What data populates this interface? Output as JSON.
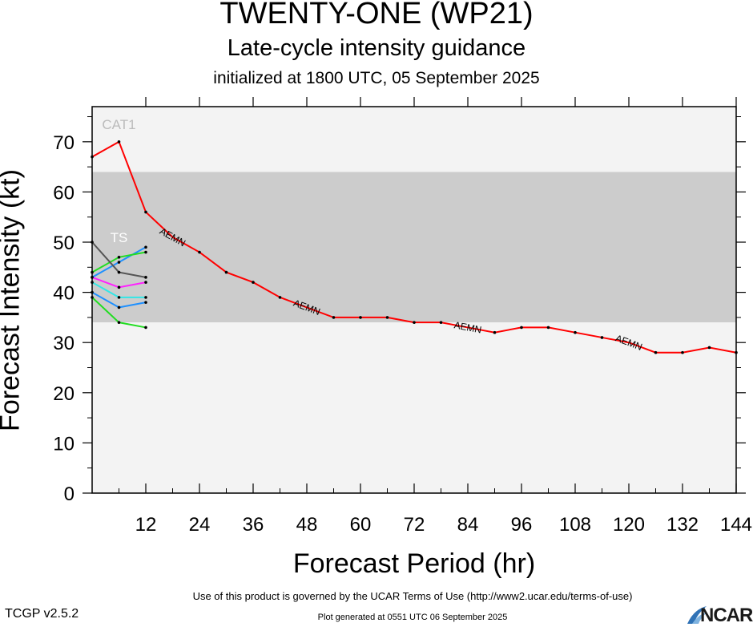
{
  "header": {
    "title": "TWENTY-ONE (WP21)",
    "subtitle": "Late-cycle intensity guidance",
    "init": "initialized at 1800 UTC, 05 September 2025"
  },
  "footer": {
    "terms": "Use of this product is governed by the UCAR Terms of Use (http://www2.ucar.edu/terms-of-use)",
    "generated": "Plot generated at 0551 UTC   06 September 2025",
    "version": "TCGP v2.5.2",
    "logo_text": "NCAR"
  },
  "chart_data": {
    "type": "line",
    "xlabel": "Forecast Period (hr)",
    "ylabel": "Forecast Intensity (kt)",
    "xlim": [
      0,
      144
    ],
    "ylim": [
      0,
      77
    ],
    "xticks": [
      12,
      24,
      36,
      48,
      60,
      72,
      84,
      96,
      108,
      120,
      132,
      144
    ],
    "yticks": [
      0,
      10,
      20,
      30,
      40,
      50,
      60,
      70
    ],
    "grid": false,
    "legend": "none",
    "bands": [
      {
        "label": "TS",
        "from": 34,
        "to": 64,
        "color": "#cccccc"
      },
      {
        "label": "CAT1",
        "from": 64,
        "to": 77,
        "color": "#f3f3f3"
      },
      {
        "label": "",
        "from": 0,
        "to": 34,
        "color": "#f3f3f3"
      }
    ],
    "series": [
      {
        "name": "AEMN",
        "color": "#ff0000",
        "x": [
          0,
          6,
          12,
          18,
          24,
          30,
          36,
          42,
          48,
          54,
          60,
          66,
          72,
          78,
          84,
          90,
          96,
          102,
          108,
          114,
          120,
          126,
          132,
          138,
          144
        ],
        "y": [
          67,
          70,
          56,
          51,
          48,
          44,
          42,
          39,
          37,
          35,
          35,
          35,
          34,
          34,
          33,
          32,
          33,
          33,
          32,
          31,
          30,
          28,
          28,
          29,
          28
        ],
        "labels_at": [
          18,
          48,
          84,
          120
        ]
      },
      {
        "color": "#1e90ff",
        "x": [
          0,
          6,
          12
        ],
        "y": [
          43,
          46,
          49
        ]
      },
      {
        "color": "#22dd22",
        "x": [
          0,
          6,
          12
        ],
        "y": [
          44,
          47,
          48
        ]
      },
      {
        "color": "#555555",
        "x": [
          0,
          6,
          12
        ],
        "y": [
          50,
          44,
          43
        ]
      },
      {
        "color": "#ff22ff",
        "x": [
          0,
          6,
          12
        ],
        "y": [
          43,
          41,
          42
        ]
      },
      {
        "color": "#33e6e6",
        "x": [
          0,
          6,
          12
        ],
        "y": [
          42,
          39,
          39
        ]
      },
      {
        "color": "#1e90ff",
        "x": [
          0,
          6,
          12
        ],
        "y": [
          40,
          37,
          38
        ]
      },
      {
        "color": "#22dd22",
        "x": [
          0,
          6,
          12
        ],
        "y": [
          39,
          34,
          33
        ]
      }
    ]
  }
}
